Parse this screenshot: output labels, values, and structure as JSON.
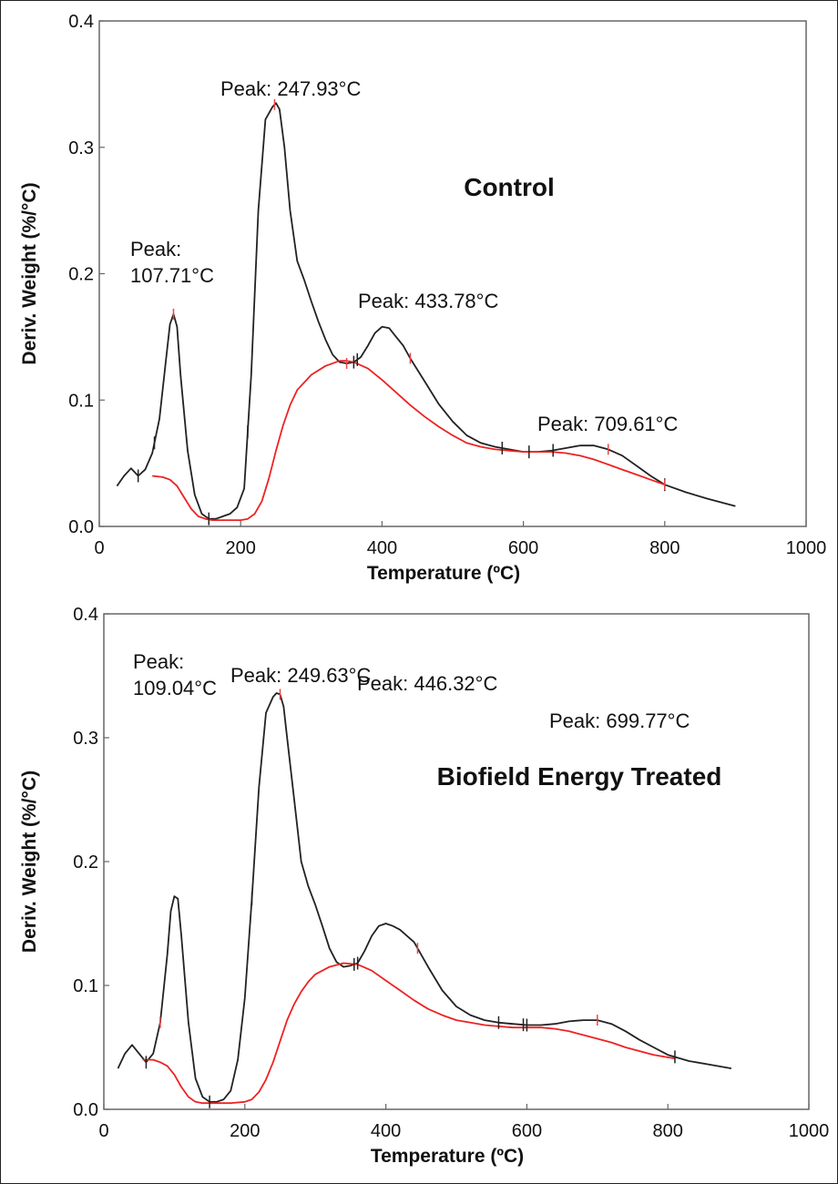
{
  "chart_data": [
    {
      "type": "line",
      "title": "Control",
      "xlabel": "Temperature (ºC)",
      "ylabel": "Deriv. Weight (%/°C)",
      "xlim": [
        0,
        1000
      ],
      "ylim": [
        0,
        0.4
      ],
      "x_ticks": [
        0,
        200,
        400,
        600,
        800,
        1000
      ],
      "y_ticks": [
        0.0,
        0.1,
        0.2,
        0.3,
        0.4
      ],
      "grid": false,
      "annotations": [
        {
          "lines": [
            "Peak:",
            "107.71°C"
          ],
          "x": 107.71
        },
        {
          "lines": [
            "Peak: 247.93°C"
          ],
          "x": 247.93
        },
        {
          "lines": [
            "Peak: 433.78°C"
          ],
          "x": 433.78
        },
        {
          "lines": [
            "Peak: 709.61°C"
          ],
          "x": 709.61
        }
      ],
      "series": [
        {
          "color": "#222222",
          "x": [
            25,
            35,
            45,
            55,
            65,
            75,
            85,
            95,
            100,
            105,
            110,
            115,
            125,
            135,
            145,
            155,
            165,
            175,
            185,
            195,
            205,
            215,
            225,
            235,
            245,
            250,
            255,
            262,
            270,
            280,
            290,
            300,
            310,
            320,
            330,
            340,
            350,
            360,
            370,
            380,
            390,
            400,
            410,
            420,
            430,
            440,
            460,
            480,
            500,
            520,
            540,
            560,
            580,
            600,
            620,
            640,
            660,
            680,
            700,
            720,
            740,
            760,
            780,
            800,
            830,
            860,
            900
          ],
          "y": [
            0.032,
            0.04,
            0.046,
            0.04,
            0.045,
            0.058,
            0.085,
            0.135,
            0.16,
            0.168,
            0.158,
            0.12,
            0.06,
            0.025,
            0.01,
            0.006,
            0.006,
            0.008,
            0.01,
            0.015,
            0.03,
            0.12,
            0.25,
            0.322,
            0.332,
            0.335,
            0.33,
            0.3,
            0.25,
            0.21,
            0.195,
            0.178,
            0.162,
            0.148,
            0.136,
            0.13,
            0.129,
            0.13,
            0.134,
            0.143,
            0.153,
            0.158,
            0.157,
            0.15,
            0.143,
            0.133,
            0.115,
            0.097,
            0.083,
            0.072,
            0.066,
            0.063,
            0.061,
            0.059,
            0.059,
            0.06,
            0.062,
            0.064,
            0.064,
            0.061,
            0.056,
            0.048,
            0.04,
            0.033,
            0.027,
            0.022,
            0.016
          ]
        },
        {
          "color": "#ee2222",
          "x": [
            75,
            90,
            100,
            110,
            120,
            130,
            140,
            150,
            160,
            170,
            180,
            190,
            200,
            210,
            220,
            230,
            240,
            250,
            260,
            270,
            280,
            300,
            320,
            340,
            350,
            360,
            380,
            400,
            420,
            440,
            460,
            480,
            500,
            520,
            540,
            560,
            580,
            600,
            620,
            640,
            660,
            680,
            700,
            720,
            740,
            760,
            780,
            800
          ],
          "y": [
            0.04,
            0.039,
            0.037,
            0.032,
            0.023,
            0.014,
            0.008,
            0.006,
            0.005,
            0.005,
            0.005,
            0.005,
            0.005,
            0.006,
            0.01,
            0.02,
            0.038,
            0.06,
            0.08,
            0.096,
            0.108,
            0.12,
            0.127,
            0.131,
            0.131,
            0.13,
            0.125,
            0.116,
            0.106,
            0.096,
            0.087,
            0.079,
            0.072,
            0.066,
            0.063,
            0.061,
            0.06,
            0.059,
            0.059,
            0.059,
            0.058,
            0.056,
            0.053,
            0.049,
            0.045,
            0.041,
            0.037,
            0.033
          ]
        }
      ]
    },
    {
      "type": "line",
      "title": "Biofield Energy Treated",
      "xlabel": "Temperature (ºC)",
      "ylabel": "Deriv. Weight (%/°C)",
      "xlim": [
        0,
        1000
      ],
      "ylim": [
        0,
        0.4
      ],
      "x_ticks": [
        0,
        200,
        400,
        600,
        800,
        1000
      ],
      "y_ticks": [
        0.0,
        0.1,
        0.2,
        0.3,
        0.4
      ],
      "grid": false,
      "annotations": [
        {
          "lines": [
            "Peak:",
            "109.04°C"
          ],
          "x": 109.04
        },
        {
          "lines": [
            "Peak: 249.63°C"
          ],
          "x": 249.63
        },
        {
          "lines": [
            "Peak: 446.32°C"
          ],
          "x": 446.32
        },
        {
          "lines": [
            "Peak: 699.77°C"
          ],
          "x": 699.77
        }
      ],
      "series": [
        {
          "color": "#222222",
          "x": [
            20,
            30,
            40,
            50,
            60,
            70,
            80,
            90,
            95,
            100,
            105,
            110,
            120,
            130,
            140,
            150,
            160,
            170,
            180,
            190,
            200,
            210,
            220,
            230,
            240,
            245,
            250,
            255,
            260,
            270,
            280,
            290,
            300,
            310,
            320,
            330,
            340,
            350,
            360,
            370,
            380,
            390,
            400,
            410,
            420,
            440,
            460,
            480,
            500,
            520,
            540,
            560,
            580,
            600,
            620,
            640,
            660,
            680,
            700,
            720,
            740,
            760,
            780,
            800,
            830,
            860,
            890
          ],
          "y": [
            0.033,
            0.045,
            0.052,
            0.045,
            0.038,
            0.045,
            0.07,
            0.125,
            0.16,
            0.172,
            0.17,
            0.14,
            0.07,
            0.025,
            0.01,
            0.006,
            0.006,
            0.008,
            0.015,
            0.04,
            0.09,
            0.17,
            0.26,
            0.32,
            0.333,
            0.336,
            0.335,
            0.325,
            0.3,
            0.25,
            0.2,
            0.18,
            0.165,
            0.148,
            0.13,
            0.119,
            0.115,
            0.116,
            0.118,
            0.128,
            0.14,
            0.148,
            0.15,
            0.148,
            0.145,
            0.135,
            0.115,
            0.096,
            0.083,
            0.076,
            0.072,
            0.07,
            0.069,
            0.068,
            0.068,
            0.069,
            0.071,
            0.072,
            0.072,
            0.069,
            0.063,
            0.056,
            0.05,
            0.044,
            0.039,
            0.036,
            0.033
          ]
        },
        {
          "color": "#ee2222",
          "x": [
            55,
            70,
            80,
            90,
            100,
            110,
            120,
            130,
            140,
            150,
            160,
            180,
            200,
            210,
            220,
            230,
            240,
            250,
            260,
            270,
            280,
            290,
            300,
            320,
            340,
            360,
            380,
            400,
            420,
            440,
            460,
            480,
            500,
            520,
            540,
            560,
            580,
            600,
            620,
            640,
            660,
            680,
            700,
            720,
            740,
            760,
            780,
            810
          ],
          "y": [
            0.04,
            0.04,
            0.038,
            0.035,
            0.028,
            0.018,
            0.01,
            0.006,
            0.005,
            0.005,
            0.005,
            0.005,
            0.006,
            0.008,
            0.014,
            0.024,
            0.038,
            0.055,
            0.072,
            0.085,
            0.095,
            0.103,
            0.109,
            0.115,
            0.118,
            0.117,
            0.112,
            0.104,
            0.096,
            0.088,
            0.081,
            0.076,
            0.072,
            0.07,
            0.068,
            0.067,
            0.066,
            0.066,
            0.066,
            0.065,
            0.063,
            0.06,
            0.057,
            0.054,
            0.05,
            0.047,
            0.044,
            0.041
          ]
        }
      ]
    }
  ]
}
